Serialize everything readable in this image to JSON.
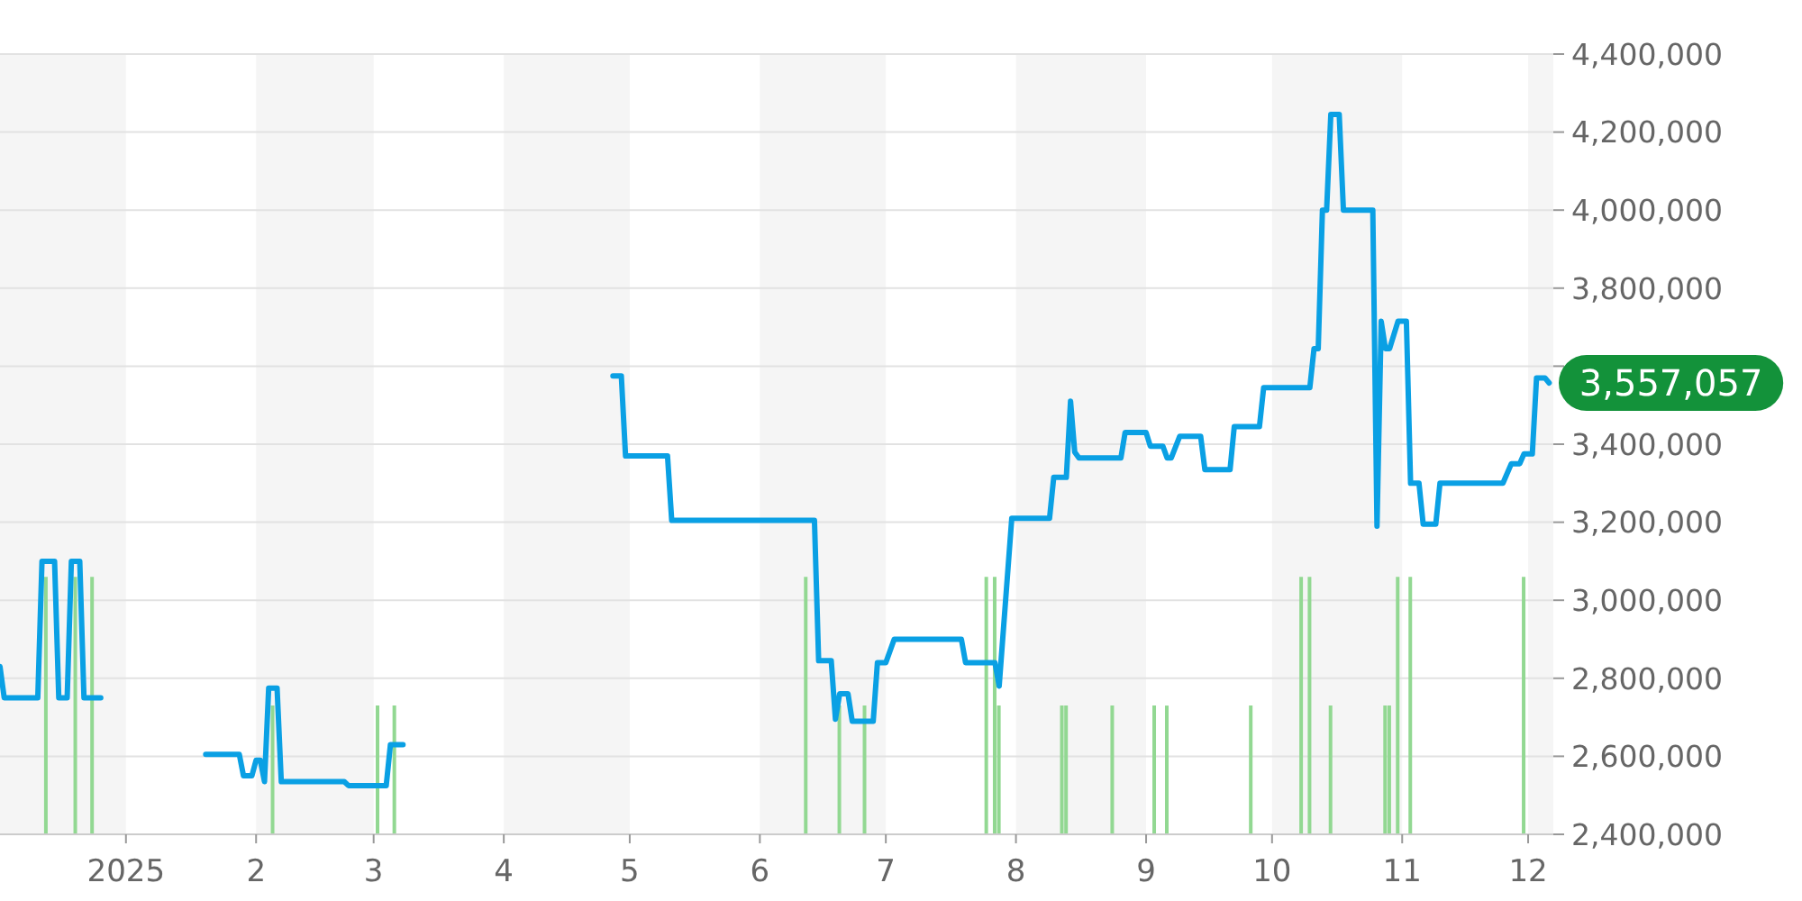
{
  "chart_data": {
    "type": "line",
    "xlim": [
      "2024-12-02",
      "2025-12-07"
    ],
    "xticks": [
      {
        "value": "2025-01-01",
        "label": "2025"
      },
      {
        "value": "2025-02-01",
        "label": "2"
      },
      {
        "value": "2025-03-01",
        "label": "3"
      },
      {
        "value": "2025-04-01",
        "label": "4"
      },
      {
        "value": "2025-05-01",
        "label": "5"
      },
      {
        "value": "2025-06-01",
        "label": "6"
      },
      {
        "value": "2025-07-01",
        "label": "7"
      },
      {
        "value": "2025-08-01",
        "label": "8"
      },
      {
        "value": "2025-09-01",
        "label": "9"
      },
      {
        "value": "2025-10-01",
        "label": "10"
      },
      {
        "value": "2025-11-01",
        "label": "11"
      },
      {
        "value": "2025-12-01",
        "label": "12"
      }
    ],
    "ylim": [
      2400000,
      4400000
    ],
    "yticks": [
      {
        "value": 2400000,
        "label": "2,400,000"
      },
      {
        "value": 2600000,
        "label": "2,600,000"
      },
      {
        "value": 2800000,
        "label": "2,800,000"
      },
      {
        "value": 3000000,
        "label": "3,000,000"
      },
      {
        "value": 3200000,
        "label": "3,200,000"
      },
      {
        "value": 3400000,
        "label": "3,400,000"
      },
      {
        "value": 3600000,
        "label": null
      },
      {
        "value": 3800000,
        "label": "3,800,000"
      },
      {
        "value": 4000000,
        "label": "4,000,000"
      },
      {
        "value": 4200000,
        "label": "4,200,000"
      },
      {
        "value": 4400000,
        "label": "4,400,000"
      }
    ],
    "grid": "y",
    "bands": [
      {
        "axis": "x",
        "from": "2024-12-02",
        "to": "2025-01-01",
        "color": "#f5f5f5"
      },
      {
        "axis": "x",
        "from": "2025-02-01",
        "to": "2025-03-01",
        "color": "#f5f5f5"
      },
      {
        "axis": "x",
        "from": "2025-04-01",
        "to": "2025-05-01",
        "color": "#f5f5f5"
      },
      {
        "axis": "x",
        "from": "2025-06-01",
        "to": "2025-07-01",
        "color": "#f5f5f5"
      },
      {
        "axis": "x",
        "from": "2025-08-01",
        "to": "2025-09-01",
        "color": "#f5f5f5"
      },
      {
        "axis": "x",
        "from": "2025-10-01",
        "to": "2025-11-01",
        "color": "#f5f5f5"
      },
      {
        "axis": "x",
        "from": "2025-12-01",
        "to": "2025-12-07",
        "color": "#f5f5f5"
      }
    ],
    "annotations": [
      "3,557,057"
    ],
    "series": [
      {
        "type": "bar",
        "color": "#92d892",
        "x": [
          "2024-12-13",
          "2024-12-20",
          "2024-12-24",
          "2025-02-05",
          "2025-03-02",
          "2025-03-06",
          "2025-06-12",
          "2025-06-20",
          "2025-06-26",
          "2025-07-25",
          "2025-07-27",
          "2025-07-28",
          "2025-08-12",
          "2025-08-13",
          "2025-08-24",
          "2025-09-03",
          "2025-09-06",
          "2025-09-26",
          "2025-10-08",
          "2025-10-10",
          "2025-10-15",
          "2025-10-28",
          "2025-10-29",
          "2025-10-31",
          "2025-11-03",
          "2025-11-30"
        ],
        "values": [
          3060000,
          3060000,
          3060000,
          2730000,
          2730000,
          2730000,
          3060000,
          2730000,
          2730000,
          3060000,
          3060000,
          2730000,
          2730000,
          2730000,
          2730000,
          2730000,
          2730000,
          2730000,
          3060000,
          3060000,
          2730000,
          2730000,
          2730000,
          3060000,
          3060000,
          3060000
        ]
      },
      {
        "color": "#0aa0e4",
        "x": [
          "2024-12-02",
          "2024-12-03",
          "2024-12-11",
          "2024-12-12",
          "2024-12-15",
          "2024-12-16",
          "2024-12-18",
          "2024-12-19",
          "2024-12-21",
          "2024-12-22",
          "2024-12-26",
          "2025-01-08",
          "2025-01-20",
          "2025-01-28",
          "2025-01-29",
          "2025-01-31",
          "2025-02-01",
          "2025-02-02",
          "2025-02-03",
          "2025-02-04",
          "2025-02-06",
          "2025-02-07",
          "2025-02-22",
          "2025-02-23",
          "2025-03-04",
          "2025-03-05",
          "2025-03-08",
          "2025-04-10",
          "2025-04-27",
          "2025-04-29",
          "2025-04-30",
          "2025-05-10",
          "2025-05-11",
          "2025-06-14",
          "2025-06-15",
          "2025-06-18",
          "2025-06-19",
          "2025-06-20",
          "2025-06-22",
          "2025-06-23",
          "2025-06-28",
          "2025-06-29",
          "2025-07-01",
          "2025-07-03",
          "2025-07-19",
          "2025-07-20",
          "2025-07-27",
          "2025-07-28",
          "2025-07-31",
          "2025-08-09",
          "2025-08-10",
          "2025-08-13",
          "2025-08-14",
          "2025-08-15",
          "2025-08-16",
          "2025-08-26",
          "2025-08-27",
          "2025-09-01",
          "2025-09-02",
          "2025-09-05",
          "2025-09-06",
          "2025-09-07",
          "2025-09-09",
          "2025-09-14",
          "2025-09-15",
          "2025-09-21",
          "2025-09-22",
          "2025-09-28",
          "2025-09-29",
          "2025-10-10",
          "2025-10-11",
          "2025-10-12",
          "2025-10-13",
          "2025-10-14",
          "2025-10-15",
          "2025-10-17",
          "2025-10-18",
          "2025-10-25",
          "2025-10-26",
          "2025-10-27",
          "2025-10-28",
          "2025-10-29",
          "2025-10-31",
          "2025-11-02",
          "2025-11-03",
          "2025-11-05",
          "2025-11-06",
          "2025-11-09",
          "2025-11-10",
          "2025-11-25",
          "2025-11-27",
          "2025-11-29",
          "2025-11-30",
          "2025-12-02",
          "2025-12-03",
          "2025-12-05",
          "2025-12-06"
        ],
        "values": [
          2830000,
          2750000,
          2750000,
          3100000,
          3100000,
          2750000,
          2750000,
          3100000,
          3100000,
          2750000,
          2750000,
          null,
          2605000,
          2605000,
          2550000,
          2550000,
          2590000,
          2590000,
          2535000,
          2775000,
          2775000,
          2535000,
          2535000,
          2525000,
          2525000,
          2630000,
          2630000,
          null,
          3575000,
          3575000,
          3370000,
          3370000,
          3205000,
          3205000,
          2845000,
          2845000,
          2695000,
          2760000,
          2760000,
          2690000,
          2690000,
          2840000,
          2840000,
          2900000,
          2900000,
          2840000,
          2840000,
          2780000,
          3210000,
          3210000,
          3315000,
          3315000,
          3510000,
          3380000,
          3365000,
          3365000,
          3430000,
          3430000,
          3395000,
          3395000,
          3365000,
          3365000,
          3420000,
          3420000,
          3335000,
          3335000,
          3445000,
          3445000,
          3545000,
          3545000,
          3645000,
          3645000,
          4000000,
          4000000,
          4245000,
          4245000,
          4000000,
          4000000,
          3190000,
          3715000,
          3645000,
          3645000,
          3715000,
          3715000,
          3300000,
          3300000,
          3195000,
          3195000,
          3300000,
          3300000,
          3350000,
          3350000,
          3375000,
          3375000,
          3570000,
          3570000,
          3557057
        ]
      }
    ]
  }
}
